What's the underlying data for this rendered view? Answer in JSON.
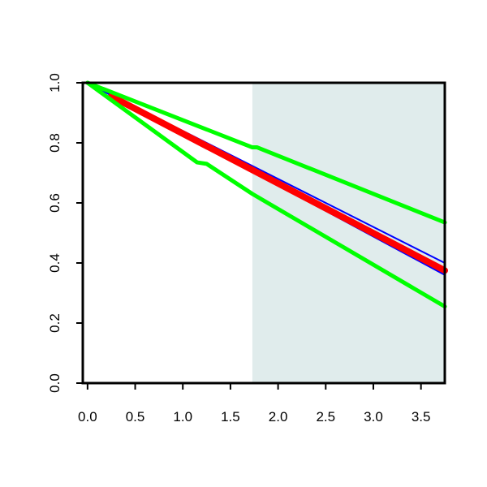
{
  "chart_data": {
    "type": "line",
    "title": "",
    "xlabel": "",
    "ylabel": "",
    "xlim": [
      -0.05,
      3.75
    ],
    "ylim": [
      0.0,
      1.0
    ],
    "x_ticks": [
      0.0,
      0.5,
      1.0,
      1.5,
      2.0,
      2.5,
      3.0,
      3.5
    ],
    "x_tick_labels": [
      "0.0",
      "0.5",
      "1.0",
      "1.5",
      "2.0",
      "2.5",
      "3.0",
      "3.5"
    ],
    "y_ticks": [
      0.0,
      0.2,
      0.4,
      0.6,
      0.8,
      1.0
    ],
    "y_tick_labels": [
      "0.0",
      "0.2",
      "0.4",
      "0.6",
      "0.8",
      "1.0"
    ],
    "grid": false,
    "legend": "none",
    "shaded_region": {
      "x_from": 1.73,
      "x_to": 3.75,
      "color": "#e0ecec"
    },
    "series": [
      {
        "color": "#0000ff",
        "style": "thin",
        "x": [
          0.0,
          3.75
        ],
        "y": [
          1.0,
          0.4
        ]
      },
      {
        "color": "#0000ff",
        "style": "thin",
        "x": [
          0.0,
          3.75
        ],
        "y": [
          1.0,
          0.36
        ]
      },
      {
        "color": "#ff0000",
        "style": "thick",
        "x": [
          0.25,
          3.75
        ],
        "y": [
          0.955,
          0.375
        ]
      },
      {
        "color": "#00ff00",
        "style": "medium",
        "x": [
          0.0,
          1.73,
          1.78,
          3.75
        ],
        "y": [
          1.0,
          0.785,
          0.785,
          0.535
        ]
      },
      {
        "color": "#00ff00",
        "style": "medium",
        "x": [
          0.0,
          1.15,
          1.25,
          1.73,
          3.75
        ],
        "y": [
          1.0,
          0.735,
          0.73,
          0.63,
          0.255
        ]
      }
    ]
  }
}
